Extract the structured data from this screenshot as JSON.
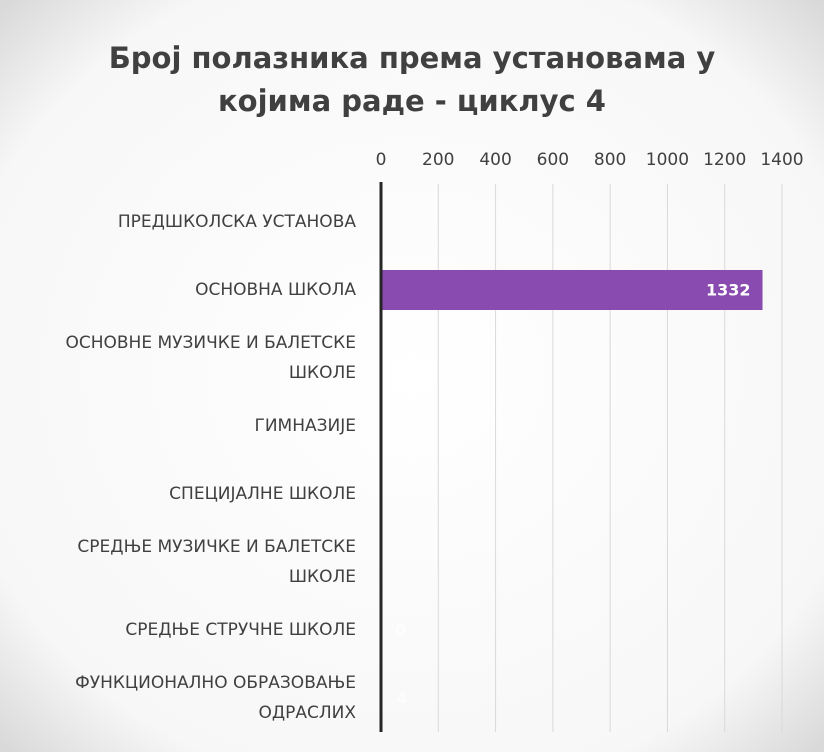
{
  "chart_data": {
    "type": "bar",
    "orientation": "horizontal",
    "title": "Број полазника према установама у којима раде - циклус 4",
    "categories": [
      "ПРЕДШКОЛСКА УСТАНОВА",
      "ОСНОВНА ШКОЛА",
      "ОСНОВНЕ МУЗИЧКЕ И БАЛЕТСКЕ ШКОЛЕ",
      "ГИМНАЗИЈЕ",
      "СПЕЦИЈАЛНЕ ШКОЛЕ",
      "СРЕДЊЕ МУЗИЧКЕ И БАЛЕТСКЕ ШКОЛЕ",
      "СРЕДЊЕ СТРУЧНЕ ШКОЛЕ",
      "ФУНКЦИОНАЛНО ОБРАЗОВАЊЕ ОДРАСЛИХ"
    ],
    "values": [
      null,
      1332,
      null,
      null,
      null,
      null,
      0,
      4
    ],
    "color": "#8a4bb0",
    "xlim": [
      0,
      1400
    ],
    "xticks": [
      0,
      200,
      400,
      600,
      800,
      1000,
      1200,
      1400
    ],
    "grid": true
  }
}
